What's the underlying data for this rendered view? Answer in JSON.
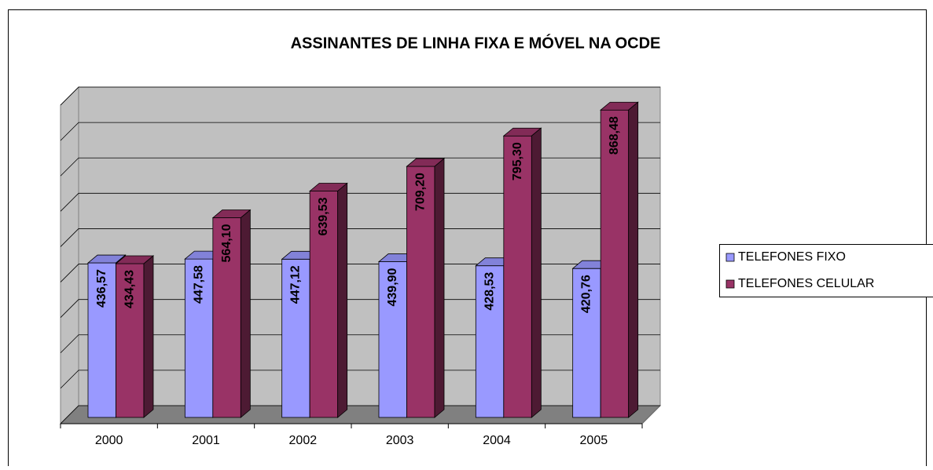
{
  "chart_data": {
    "type": "bar3d",
    "title": "ASSINANTES DE LINHA FIXA E MÓVEL NA OCDE",
    "categories": [
      "2000",
      "2001",
      "2002",
      "2003",
      "2004",
      "2005"
    ],
    "series": [
      {
        "name": "TELEFONES FIXO",
        "color": "#9999ff",
        "values": [
          436.57,
          447.58,
          447.12,
          439.9,
          428.53,
          420.76
        ],
        "value_labels": [
          "436,57",
          "447,58",
          "447,12",
          "439,90",
          "428,53",
          "420,76"
        ]
      },
      {
        "name": "TELEFONES CELULAR",
        "color": "#993366",
        "values": [
          434.43,
          564.1,
          639.53,
          709.2,
          795.3,
          868.48
        ],
        "value_labels": [
          "434,43",
          "564,10",
          "639,53",
          "709,20",
          "795,30",
          "868,48"
        ]
      }
    ],
    "ylim": [
      0,
      900
    ],
    "yticks": [
      0,
      100,
      200,
      300,
      400,
      500,
      600,
      700,
      800,
      900
    ],
    "grid": true,
    "legend": "right"
  }
}
